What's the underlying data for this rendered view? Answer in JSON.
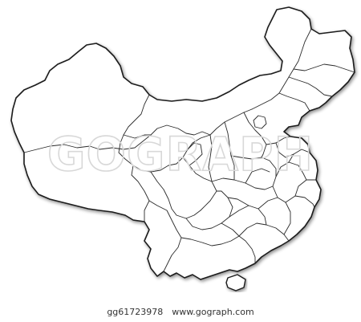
{
  "watermark": {
    "text": "GOGRAPH"
  },
  "footer": {
    "image_id": "gg61723978",
    "site": "www.gograph.com"
  },
  "colors": {
    "outline": "#1a1a1a",
    "fill": "#ffffff",
    "watermark": "#d8d8d8"
  }
}
